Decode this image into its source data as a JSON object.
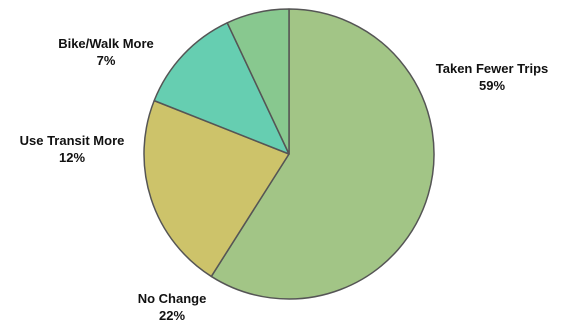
{
  "chart_data": {
    "type": "pie",
    "slices": [
      {
        "label": "Taken Fewer Trips",
        "value": 59,
        "display": "59%",
        "color": "#a2c586"
      },
      {
        "label": "No Change",
        "value": 22,
        "display": "22%",
        "color": "#cdc36a"
      },
      {
        "label": "Use Transit More",
        "value": 12,
        "display": "12%",
        "color": "#66ceb1"
      },
      {
        "label": "Bike/Walk More",
        "value": 7,
        "display": "7%",
        "color": "#88c88f"
      }
    ],
    "start_angle_deg": 0,
    "direction": "clockwise",
    "legend": "none"
  }
}
